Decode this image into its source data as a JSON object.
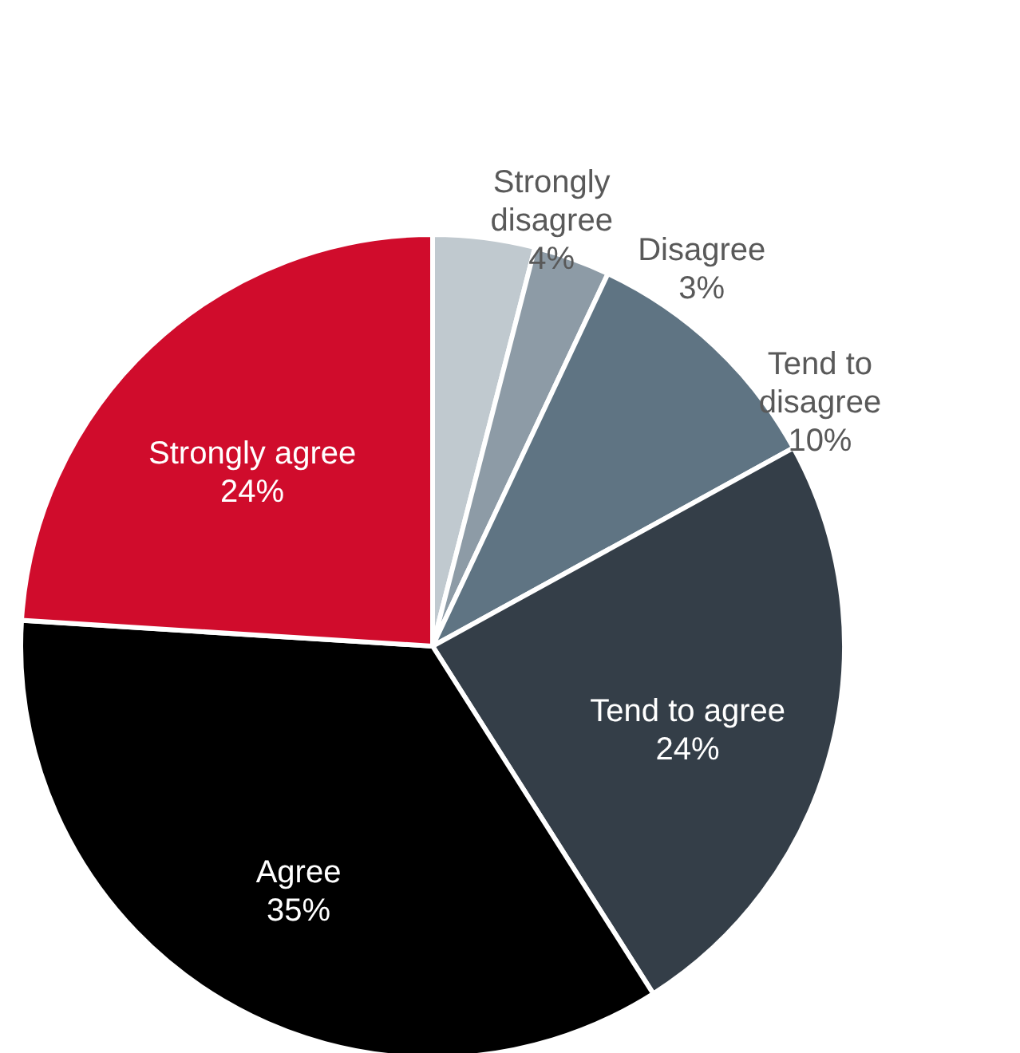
{
  "chart_data": {
    "type": "pie",
    "categories": [
      "Strongly disagree",
      "Disagree",
      "Tend to disagree",
      "Tend to agree",
      "Agree",
      "Strongly agree"
    ],
    "values": [
      4,
      3,
      10,
      24,
      35,
      24
    ],
    "value_labels": [
      "4%",
      "3%",
      "10%",
      "24%",
      "35%",
      "24%"
    ],
    "colors": [
      "#c0c9cf",
      "#8d9ba6",
      "#5f7483",
      "#343e48",
      "#000000",
      "#d00c2c"
    ],
    "data_labels": true
  }
}
